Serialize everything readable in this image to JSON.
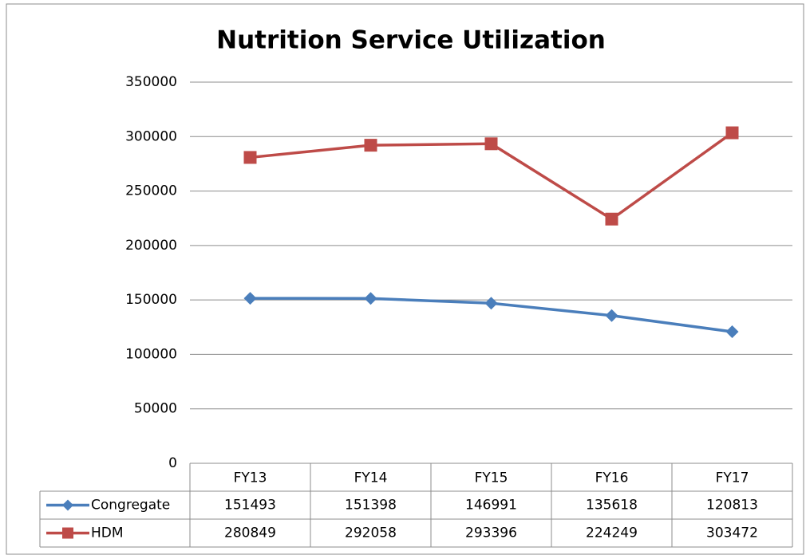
{
  "chart_data": {
    "type": "line",
    "title": "Nutrition Service Utilization",
    "categories": [
      "FY13",
      "FY14",
      "FY15",
      "FY16",
      "FY17"
    ],
    "series": [
      {
        "name": "Congregate",
        "color": "#4a7ebb",
        "marker": "diamond",
        "values": [
          151493,
          151398,
          146991,
          135618,
          120813
        ]
      },
      {
        "name": "HDM",
        "color": "#be4b48",
        "marker": "square",
        "values": [
          280849,
          292058,
          293396,
          224249,
          303472
        ]
      }
    ],
    "ylim": [
      0,
      350000
    ],
    "yticks": [
      0,
      50000,
      100000,
      150000,
      200000,
      250000,
      300000,
      350000
    ],
    "grid": true,
    "data_table": true
  }
}
